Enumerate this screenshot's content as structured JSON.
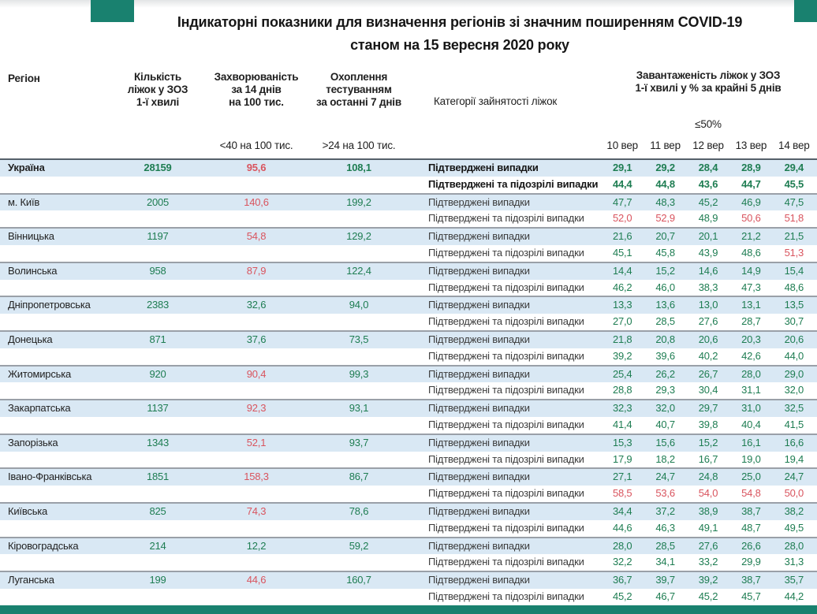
{
  "title": {
    "line1": "Індикаторні показники для визначення регіонів зі значним поширенням COVID-19",
    "line2": "станом на 15 вересня 2020 року"
  },
  "header": {
    "region": "Регіон",
    "beds_lines": [
      "Кількість",
      "ліжок у ЗОЗ",
      "1-ї хвилі"
    ],
    "incidence_lines": [
      "Захворюваність",
      "за 14 днів",
      "на 100 тис."
    ],
    "testing_lines": [
      "Охоплення",
      "тестуванням",
      "за останні 7 днів"
    ],
    "categories": "Категорії зайнятості ліжок",
    "occupancy_lines": [
      "Завантаженість ліжок у ЗОЗ",
      "1-ї хвилі у % за крайні 5 днів"
    ],
    "occupancy_threshold": "≤50%",
    "incidence_threshold": "<40 на 100 тис.",
    "testing_threshold": ">24 на 100 тис."
  },
  "row_labels": {
    "confirmed": "Підтверджені випадки",
    "suspected": "Підтверджені та підозрілі випадки"
  },
  "colors": {
    "green": "#1e7d52",
    "red": "#d9545e",
    "teal": "#19816f",
    "stripe": "#d9e8f4",
    "separator": "#9aa0a8"
  },
  "chart_data": {
    "type": "table",
    "title": "Індикаторні показники для визначення регіонів зі значним поширенням COVID-19 станом на 15 вересня 2020 року",
    "dates": [
      "10 вер",
      "11 вер",
      "12 вер",
      "13 вер",
      "14 вер"
    ],
    "columns": [
      "Регіон",
      "Кількість ліжок у ЗОЗ 1-ї хвилі",
      "Захворюваність за 14 днів на 100 тис.",
      "Охоплення тестуванням за останні 7 днів",
      "Категорії зайнятості ліжок",
      "Завантаженість ліжок у ЗОЗ 1-ї хвилі у % за крайні 5 днів"
    ],
    "regions": [
      {
        "name": "Україна",
        "bold": true,
        "beds": "28159",
        "incidence": "95,6",
        "incidence_red": true,
        "testing": "108,1",
        "confirmed": [
          "29,1",
          "29,2",
          "28,4",
          "28,9",
          "29,4"
        ],
        "confirmed_red": [],
        "suspected": [
          "44,4",
          "44,8",
          "43,6",
          "44,7",
          "45,5"
        ],
        "suspected_red": []
      },
      {
        "name": "м. Київ",
        "bold": false,
        "beds": "2005",
        "incidence": "140,6",
        "incidence_red": true,
        "testing": "199,2",
        "confirmed": [
          "47,7",
          "48,3",
          "45,2",
          "46,9",
          "47,5"
        ],
        "confirmed_red": [],
        "suspected": [
          "52,0",
          "52,9",
          "48,9",
          "50,6",
          "51,8"
        ],
        "suspected_red": [
          0,
          1,
          3,
          4
        ]
      },
      {
        "name": "Вінницька",
        "bold": false,
        "beds": "1197",
        "incidence": "54,8",
        "incidence_red": true,
        "testing": "129,2",
        "confirmed": [
          "21,6",
          "20,7",
          "20,1",
          "21,2",
          "21,5"
        ],
        "confirmed_red": [],
        "suspected": [
          "45,1",
          "45,8",
          "43,9",
          "48,6",
          "51,3"
        ],
        "suspected_red": [
          4
        ]
      },
      {
        "name": "Волинська",
        "bold": false,
        "beds": "958",
        "incidence": "87,9",
        "incidence_red": true,
        "testing": "122,4",
        "confirmed": [
          "14,4",
          "15,2",
          "14,6",
          "14,9",
          "15,4"
        ],
        "confirmed_red": [],
        "suspected": [
          "46,2",
          "46,0",
          "38,3",
          "47,3",
          "48,6"
        ],
        "suspected_red": []
      },
      {
        "name": "Дніпропетровська",
        "bold": false,
        "beds": "2383",
        "incidence": "32,6",
        "incidence_red": false,
        "testing": "94,0",
        "confirmed": [
          "13,3",
          "13,6",
          "13,0",
          "13,1",
          "13,5"
        ],
        "confirmed_red": [],
        "suspected": [
          "27,0",
          "28,5",
          "27,6",
          "28,7",
          "30,7"
        ],
        "suspected_red": []
      },
      {
        "name": "Донецька",
        "bold": false,
        "beds": "871",
        "incidence": "37,6",
        "incidence_red": false,
        "testing": "73,5",
        "confirmed": [
          "21,8",
          "20,8",
          "20,6",
          "20,3",
          "20,6"
        ],
        "confirmed_red": [],
        "suspected": [
          "39,2",
          "39,6",
          "40,2",
          "42,6",
          "44,0"
        ],
        "suspected_red": []
      },
      {
        "name": "Житомирська",
        "bold": false,
        "beds": "920",
        "incidence": "90,4",
        "incidence_red": true,
        "testing": "99,3",
        "confirmed": [
          "25,4",
          "26,2",
          "26,7",
          "28,0",
          "29,0"
        ],
        "confirmed_red": [],
        "suspected": [
          "28,8",
          "29,3",
          "30,4",
          "31,1",
          "32,0"
        ],
        "suspected_red": []
      },
      {
        "name": "Закарпатська",
        "bold": false,
        "beds": "1137",
        "incidence": "92,3",
        "incidence_red": true,
        "testing": "93,1",
        "confirmed": [
          "32,3",
          "32,0",
          "29,7",
          "31,0",
          "32,5"
        ],
        "confirmed_red": [],
        "suspected": [
          "41,4",
          "40,7",
          "39,8",
          "40,4",
          "41,5"
        ],
        "suspected_red": []
      },
      {
        "name": "Запорізька",
        "bold": false,
        "beds": "1343",
        "incidence": "52,1",
        "incidence_red": true,
        "testing": "93,7",
        "confirmed": [
          "15,3",
          "15,6",
          "15,2",
          "16,1",
          "16,6"
        ],
        "confirmed_red": [],
        "suspected": [
          "17,9",
          "18,2",
          "16,7",
          "19,0",
          "19,4"
        ],
        "suspected_red": []
      },
      {
        "name": "Івано-Франківська",
        "bold": false,
        "beds": "1851",
        "incidence": "158,3",
        "incidence_red": true,
        "testing": "86,7",
        "confirmed": [
          "27,1",
          "24,7",
          "24,8",
          "25,0",
          "24,7"
        ],
        "confirmed_red": [],
        "suspected": [
          "58,5",
          "53,6",
          "54,0",
          "54,8",
          "50,0"
        ],
        "suspected_red": [
          0,
          1,
          2,
          3,
          4
        ]
      },
      {
        "name": "Київська",
        "bold": false,
        "beds": "825",
        "incidence": "74,3",
        "incidence_red": true,
        "testing": "78,6",
        "confirmed": [
          "34,4",
          "37,2",
          "38,9",
          "38,7",
          "38,2"
        ],
        "confirmed_red": [],
        "suspected": [
          "44,6",
          "46,3",
          "49,1",
          "48,7",
          "49,5"
        ],
        "suspected_red": []
      },
      {
        "name": "Кіровоградська",
        "bold": false,
        "beds": "214",
        "incidence": "12,2",
        "incidence_red": false,
        "testing": "59,2",
        "confirmed": [
          "28,0",
          "28,5",
          "27,6",
          "26,6",
          "28,0"
        ],
        "confirmed_red": [],
        "suspected": [
          "32,2",
          "34,1",
          "33,2",
          "29,9",
          "31,3"
        ],
        "suspected_red": []
      },
      {
        "name": "Луганська",
        "bold": false,
        "beds": "199",
        "incidence": "44,6",
        "incidence_red": true,
        "testing": "160,7",
        "confirmed": [
          "36,7",
          "39,7",
          "39,2",
          "38,7",
          "35,7"
        ],
        "confirmed_red": [],
        "suspected": [
          "45,2",
          "46,7",
          "45,2",
          "45,7",
          "44,2"
        ],
        "suspected_red": []
      }
    ]
  }
}
